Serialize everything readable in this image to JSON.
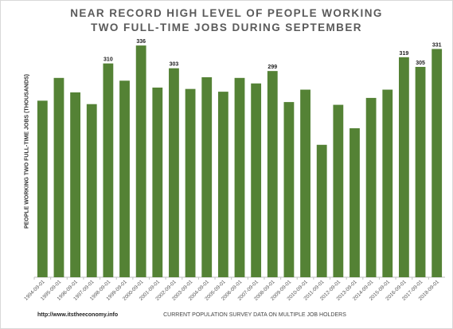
{
  "title_lines": [
    "NEAR RECORD HIGH LEVEL OF PEOPLE WORKING",
    "TWO FULL-TIME JOBS DURING SEPTEMBER"
  ],
  "source_text": "http://www.itstheeconomy.info",
  "chart_data": {
    "type": "bar",
    "ylabel": "PEOPLE WORKING TWO FULL-TIME JOBS (THOUSANDS)",
    "xlabel": "CURRENT POPULATION SURVEY  DATA ON MULTIPLE JOB HOLDERS",
    "ylim": [
      0,
      350
    ],
    "grid": false,
    "legend": "none",
    "bar_color": "#548235",
    "categories": [
      "1994-09-01",
      "1995-09-01",
      "1996-09-01",
      "1997-09-01",
      "1998-09-01",
      "1999-09-01",
      "2000-09-01",
      "2001-09-01",
      "2002-09-01",
      "2003-09-01",
      "2004-09-01",
      "2005-09-01",
      "2006-09-01",
      "2007-09-01",
      "2008-09-01",
      "2009-09-01",
      "2010-09-01",
      "2011-09-01",
      "2012-09-01",
      "2013-09-01",
      "2014-09-01",
      "2015-09-01",
      "2016-09-01",
      "2017-09-01",
      "2018-09-01"
    ],
    "values": [
      256,
      289,
      268,
      251,
      310,
      285,
      336,
      275,
      303,
      273,
      290,
      269,
      289,
      281,
      299,
      254,
      272,
      192,
      250,
      216,
      260,
      272,
      319,
      305,
      331
    ],
    "data_labels": [
      {
        "index": 4,
        "text": "310"
      },
      {
        "index": 6,
        "text": "336"
      },
      {
        "index": 8,
        "text": "303"
      },
      {
        "index": 14,
        "text": "299"
      },
      {
        "index": 22,
        "text": "319"
      },
      {
        "index": 23,
        "text": "305"
      },
      {
        "index": 24,
        "text": "331"
      }
    ]
  }
}
